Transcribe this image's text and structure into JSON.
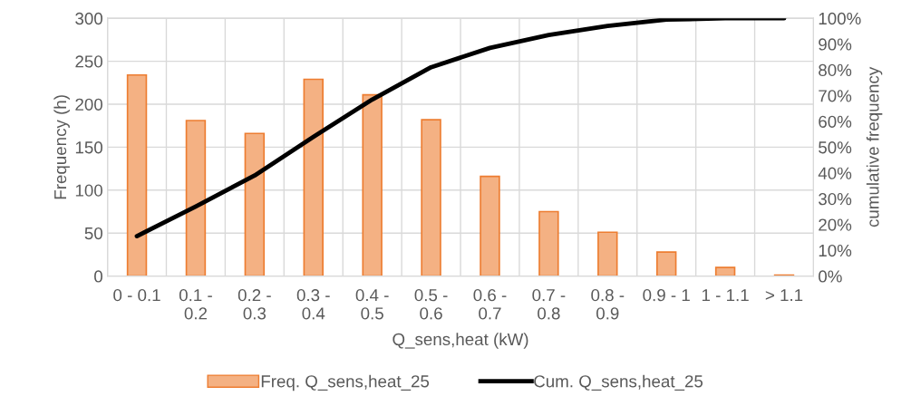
{
  "chart_data": {
    "type": "bar",
    "xlabel": "Q_sens,heat (kW)",
    "ylabel": "Frequency (h)",
    "y2label": "cumulative frequency",
    "categories": [
      "0 - 0.1",
      "0.1 - 0.2",
      "0.2 - 0.3",
      "0.3 - 0.4",
      "0.4 - 0.5",
      "0.5 - 0.6",
      "0.6 - 0.7",
      "0.7 - 0.8",
      "0.8 - 0.9",
      "0.9 - 1",
      "1 - 1.1",
      "> 1.1"
    ],
    "series": [
      {
        "name": "Freq. Q_sens,heat_25",
        "color": "#f4b183",
        "values": [
          234,
          181,
          166,
          229,
          211,
          182,
          116,
          75,
          51,
          28,
          10,
          1
        ]
      },
      {
        "name": "Cum. Q_sens,heat_25",
        "type": "line",
        "axis": "y2",
        "color": "#000000",
        "values": [
          15.5,
          27,
          39,
          54,
          68.5,
          81,
          88.5,
          93.5,
          97,
          99.5,
          100,
          100
        ]
      }
    ],
    "ylim": [
      0,
      300
    ],
    "yticks": [
      0,
      50,
      100,
      150,
      200,
      250,
      300
    ],
    "y2lim": [
      0,
      100
    ],
    "y2ticks": [
      {
        "value": 0,
        "label": "0%"
      },
      {
        "value": 10,
        "label": "10%"
      },
      {
        "value": 20,
        "label": "20%"
      },
      {
        "value": 30,
        "label": "30%"
      },
      {
        "value": 40,
        "label": "40%"
      },
      {
        "value": 50,
        "label": "50%"
      },
      {
        "value": 60,
        "label": "60%"
      },
      {
        "value": 70,
        "label": "70%"
      },
      {
        "value": 80,
        "label": "80%"
      },
      {
        "value": 90,
        "label": "90%"
      },
      {
        "value": 100,
        "label": "100%"
      }
    ],
    "grid": true,
    "legend": "bottom",
    "marker": "none",
    "line_style": "solid"
  }
}
